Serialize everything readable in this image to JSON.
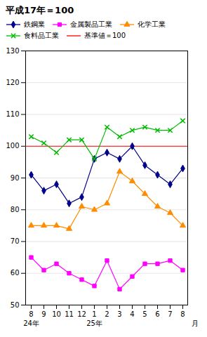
{
  "chart_data": {
    "type": "line",
    "title": "平成17年＝100",
    "categories": [
      "8",
      "9",
      "10",
      "11",
      "12",
      "1",
      "2",
      "3",
      "4",
      "5",
      "6",
      "7",
      "8"
    ],
    "series": [
      {
        "name": "鉄鋼業",
        "color": "#00008b",
        "marker": "diamond",
        "values": [
          91,
          86,
          88,
          82,
          84,
          96,
          98,
          96,
          100,
          94,
          91,
          88,
          93
        ]
      },
      {
        "name": "金属製品工業",
        "color": "#ff00ff",
        "marker": "square",
        "values": [
          65,
          61,
          63,
          60,
          58,
          56,
          64,
          55,
          59,
          63,
          63,
          64,
          61
        ]
      },
      {
        "name": "化学工業",
        "color": "#ff8c00",
        "marker": "triangle",
        "values": [
          75,
          75,
          75,
          74,
          81,
          80,
          82,
          92,
          89,
          85,
          81,
          79,
          75
        ]
      },
      {
        "name": "食料品工業",
        "color": "#00bb00",
        "marker": "x",
        "values": [
          103,
          101,
          98,
          102,
          102,
          96,
          106,
          103,
          105,
          106,
          105,
          105,
          108
        ]
      }
    ],
    "baseline": {
      "value": 100,
      "label": "基準値＝100",
      "color": "#ff0000"
    },
    "annotations": [
      {
        "text": "24年",
        "category": 0
      },
      {
        "text": "25年",
        "category": 5
      },
      {
        "text": "月"
      }
    ],
    "ylim": [
      50,
      130
    ],
    "yticks": [
      50,
      60,
      70,
      80,
      90,
      100,
      110,
      120,
      130
    ],
    "grid": true,
    "legend": "top"
  }
}
